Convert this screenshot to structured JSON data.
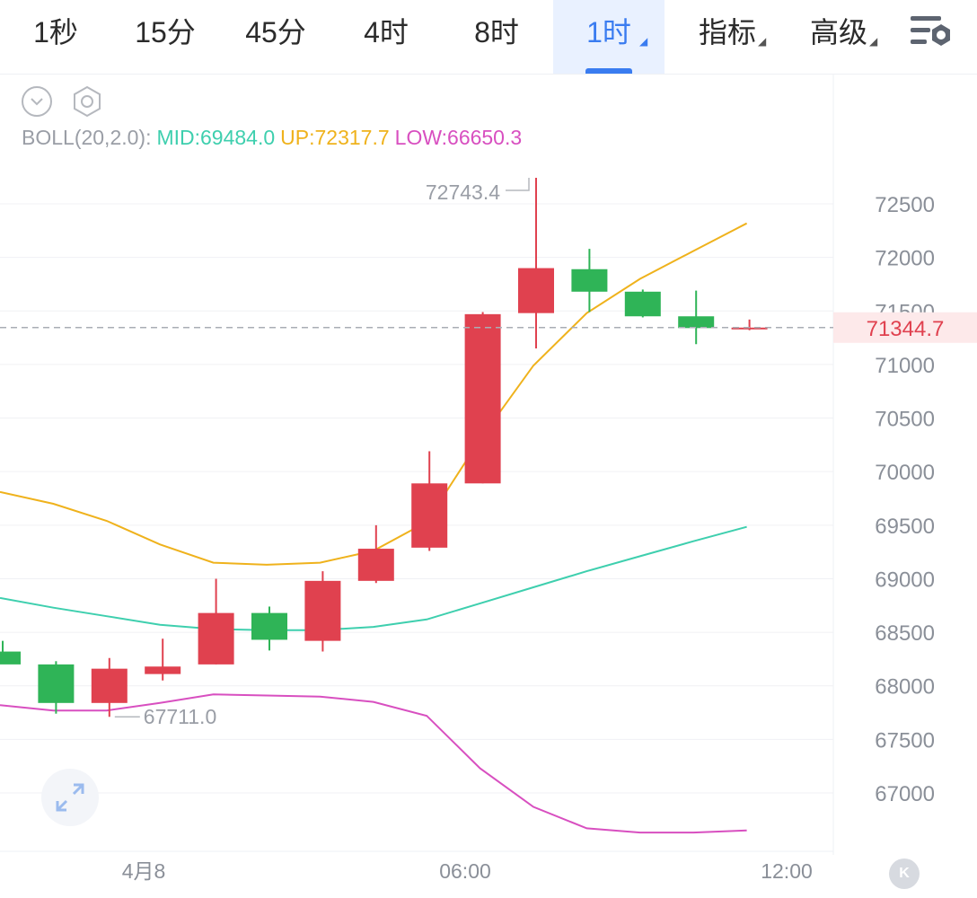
{
  "tabs": [
    {
      "label": "1秒",
      "active": false
    },
    {
      "label": "15分",
      "active": false
    },
    {
      "label": "45分",
      "active": false
    },
    {
      "label": "4时",
      "active": false
    },
    {
      "label": "8时",
      "active": false
    },
    {
      "label": "1时",
      "active": true
    },
    {
      "label": "指标",
      "active": false
    },
    {
      "label": "高级",
      "active": false
    }
  ],
  "boll": {
    "title": "BOLL(20,2.0):",
    "mid": "MID:69484.0",
    "up": "UP:72317.7",
    "low": "LOW:66650.3"
  },
  "colors": {
    "up_candle": "#e0414f",
    "down_candle": "#2fb457",
    "mid_line": "#3ecfae",
    "up_line": "#efb21c",
    "low_line": "#d84fc0",
    "accent": "#3a7cf0",
    "price_label": "#e0414f"
  },
  "chart_data": {
    "type": "candlestick",
    "y_tick_labels": [
      "72500",
      "72000",
      "71500",
      "71000",
      "70500",
      "70000",
      "69500",
      "69000",
      "68500",
      "68000",
      "67500",
      "67000"
    ],
    "y_ticks": [
      72500,
      72000,
      71500,
      71000,
      70500,
      70000,
      69500,
      69000,
      68500,
      68000,
      67500,
      67000
    ],
    "x_tick_labels": [
      "4月8",
      "06:00",
      "12:00"
    ],
    "current_price": 71344.7,
    "current_price_label": "71344.7",
    "high_label": "72743.4",
    "low_label": "67711.0",
    "candles": [
      {
        "o": 68320,
        "h": 68420,
        "l": 68220,
        "c": 68200
      },
      {
        "o": 68200,
        "h": 68230,
        "l": 67740,
        "c": 67840
      },
      {
        "o": 67840,
        "h": 68260,
        "l": 67711,
        "c": 68160
      },
      {
        "o": 68110,
        "h": 68440,
        "l": 68050,
        "c": 68180
      },
      {
        "o": 68200,
        "h": 69000,
        "l": 68200,
        "c": 68680
      },
      {
        "o": 68680,
        "h": 68740,
        "l": 68330,
        "c": 68430
      },
      {
        "o": 68420,
        "h": 69070,
        "l": 68320,
        "c": 68980
      },
      {
        "o": 68980,
        "h": 69500,
        "l": 68960,
        "c": 69280
      },
      {
        "o": 69290,
        "h": 70190,
        "l": 69260,
        "c": 69890
      },
      {
        "o": 69890,
        "h": 71490,
        "l": 69890,
        "c": 71470
      },
      {
        "o": 71480,
        "h": 72743.4,
        "l": 71150,
        "c": 71900
      },
      {
        "o": 71890,
        "h": 72080,
        "l": 71490,
        "c": 71680
      },
      {
        "o": 71680,
        "h": 71700,
        "l": 71440,
        "c": 71450
      },
      {
        "o": 71450,
        "h": 71690,
        "l": 71190,
        "c": 71340
      },
      {
        "o": 71340,
        "h": 71420,
        "l": 71320,
        "c": 71344.7
      }
    ],
    "up_band": [
      69810,
      69700,
      69540,
      69320,
      69150,
      69130,
      69150,
      69260,
      69530,
      70300,
      70990,
      71480,
      71800,
      72060,
      72317.7
    ],
    "mid_band": [
      68820,
      68730,
      68650,
      68570,
      68530,
      68520,
      68520,
      68550,
      68620,
      68770,
      68920,
      69070,
      69210,
      69350,
      69484.0
    ],
    "low_band": [
      67820,
      67770,
      67770,
      67840,
      67920,
      67910,
      67900,
      67850,
      67720,
      67230,
      66870,
      66670,
      66630,
      66630,
      66650.3
    ]
  }
}
